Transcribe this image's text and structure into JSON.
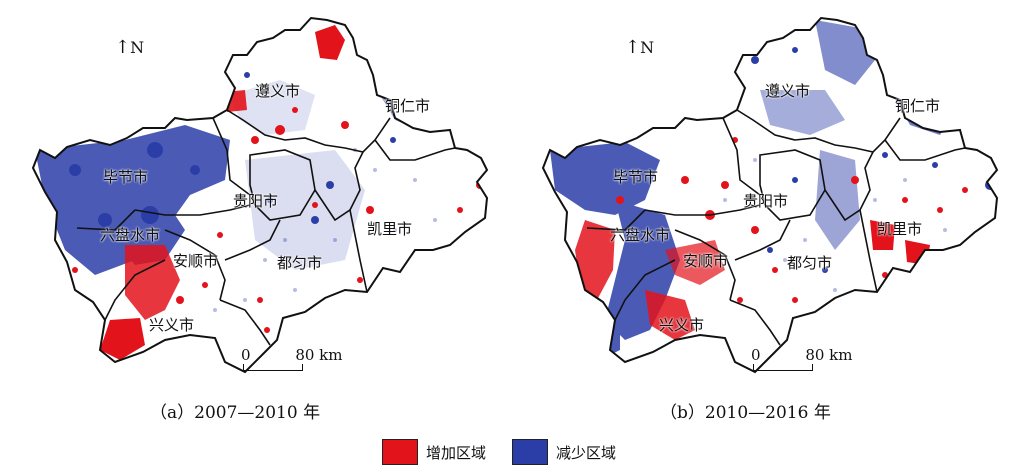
{
  "panels": [
    {
      "id": "a",
      "caption": "（a）2007—2010 年",
      "north_label": "N",
      "scale": {
        "zero": "0",
        "distance": "80 km"
      },
      "cities": [
        "遵义市",
        "铜仁市",
        "毕节市",
        "贵阳市",
        "六盘水市",
        "安顺市",
        "都匀市",
        "凯里市",
        "兴义市"
      ]
    },
    {
      "id": "b",
      "caption": "（b）2010—2016 年",
      "north_label": "N",
      "scale": {
        "zero": "0",
        "distance": "80 km"
      },
      "cities": [
        "遵义市",
        "铜仁市",
        "毕节市",
        "贵阳市",
        "六盘水市",
        "安顺市",
        "都匀市",
        "凯里市",
        "兴义市"
      ]
    }
  ],
  "legend": {
    "increase": {
      "label": "增加区域",
      "color": "#e3131b"
    },
    "decrease": {
      "label": "减少区域",
      "color": "#2b3ea8"
    }
  }
}
